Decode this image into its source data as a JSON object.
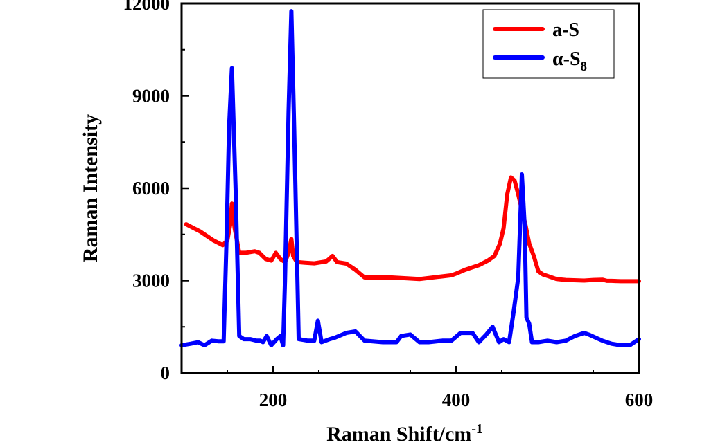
{
  "chart_data": {
    "type": "line",
    "title": "",
    "xlabel": "Raman Shift/cm",
    "xlabel_superscript": "-1",
    "ylabel": "Raman Intensity",
    "xlim": [
      100,
      600
    ],
    "ylim": [
      0,
      12000
    ],
    "x_ticks": [
      200,
      400,
      600
    ],
    "x_tick_labels": [
      "200",
      "400",
      "600"
    ],
    "y_ticks": [
      0,
      3000,
      6000,
      9000,
      12000
    ],
    "y_tick_labels": [
      "0",
      "3000",
      "6000",
      "9000",
      "12000"
    ],
    "grid": false,
    "legend_position": "top-right",
    "series": [
      {
        "name": "a-S",
        "legend_main": "a-S",
        "legend_sub": "",
        "color": "#ff0000",
        "x": [
          105,
          120,
          135,
          145,
          150,
          153,
          155,
          158,
          163,
          170,
          180,
          185,
          192,
          198,
          203,
          208,
          213,
          217,
          220,
          222,
          226,
          235,
          245,
          258,
          262,
          265,
          270,
          280,
          290,
          300,
          330,
          360,
          380,
          395,
          402,
          410,
          415,
          425,
          435,
          442,
          448,
          452,
          456,
          460,
          464,
          468,
          472,
          476,
          480,
          485,
          490,
          495,
          500,
          510,
          520,
          540,
          550,
          560,
          565,
          570,
          580,
          600
        ],
        "y": [
          4830,
          4600,
          4300,
          4150,
          4300,
          4800,
          5500,
          4700,
          3900,
          3900,
          3950,
          3900,
          3700,
          3650,
          3900,
          3700,
          3600,
          3900,
          4350,
          3800,
          3600,
          3580,
          3560,
          3620,
          3720,
          3800,
          3600,
          3550,
          3350,
          3100,
          3100,
          3050,
          3120,
          3170,
          3250,
          3350,
          3400,
          3500,
          3650,
          3800,
          4200,
          4700,
          5800,
          6350,
          6250,
          5800,
          5300,
          4800,
          4200,
          3800,
          3300,
          3200,
          3150,
          3050,
          3020,
          3000,
          3020,
          3030,
          2990,
          2990,
          2980,
          2980
        ]
      },
      {
        "name": "α-S8",
        "legend_main": "α-S",
        "legend_sub": "8",
        "color": "#0000ff",
        "x": [
          100,
          110,
          118,
          125,
          133,
          140,
          146,
          149,
          152,
          155,
          159,
          163,
          168,
          175,
          182,
          186,
          189,
          193,
          198,
          204,
          208,
          211,
          213,
          217,
          220,
          223,
          228,
          238,
          245,
          249,
          253,
          262,
          268,
          280,
          290,
          300,
          320,
          335,
          340,
          350,
          360,
          370,
          385,
          395,
          405,
          418,
          425,
          433,
          440,
          447,
          452,
          458,
          463,
          468,
          472,
          475,
          477,
          480,
          483,
          490,
          500,
          510,
          520,
          530,
          540,
          545,
          560,
          570,
          580,
          590,
          600
        ],
        "y": [
          900,
          950,
          1000,
          900,
          1050,
          1030,
          1030,
          4200,
          8000,
          9900,
          6000,
          1200,
          1100,
          1100,
          1050,
          1050,
          1000,
          1200,
          900,
          1100,
          1200,
          900,
          3000,
          8500,
          11750,
          8000,
          1100,
          1050,
          1050,
          1700,
          1000,
          1100,
          1150,
          1300,
          1350,
          1050,
          1000,
          1000,
          1200,
          1250,
          1000,
          1000,
          1050,
          1050,
          1300,
          1300,
          1000,
          1250,
          1500,
          1000,
          1100,
          1000,
          2000,
          3100,
          6450,
          4800,
          1800,
          1600,
          1000,
          1000,
          1050,
          1000,
          1050,
          1200,
          1300,
          1250,
          1050,
          950,
          900,
          900,
          1100
        ]
      }
    ]
  }
}
